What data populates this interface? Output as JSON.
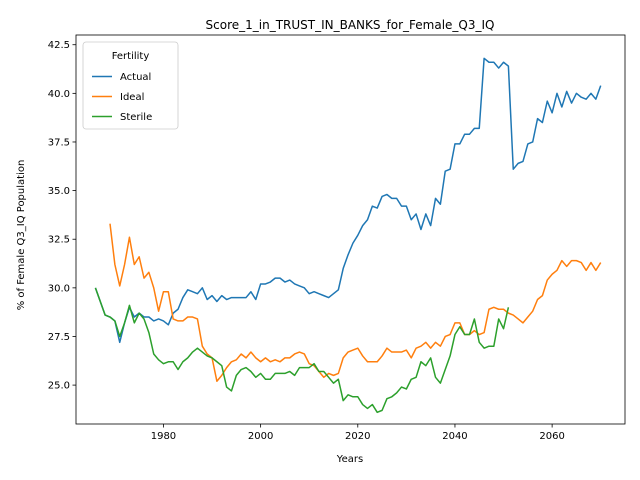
{
  "chart_data": {
    "type": "line",
    "title": "Score_1_in_TRUST_IN_BANKS_for_Female_Q3_IQ",
    "xlabel": "Years",
    "ylabel": "% of Female Q3_IQ Population",
    "xlim": [
      1962,
      2075
    ],
    "ylim": [
      23.0,
      43.0
    ],
    "xticks": [
      1980,
      2000,
      2020,
      2040,
      2060
    ],
    "yticks": [
      25.0,
      27.5,
      30.0,
      32.5,
      35.0,
      37.5,
      40.0,
      42.5
    ],
    "ytick_labels": [
      "25.0",
      "27.5",
      "30.0",
      "32.5",
      "35.0",
      "37.5",
      "40.0",
      "42.5"
    ],
    "grid": false,
    "legend": {
      "title": "Fertility",
      "placement": "top-left"
    },
    "series": [
      {
        "name": "Actual",
        "color": "#1f77b4",
        "x": [
          1966,
          1968,
          1969,
          1970,
          1971,
          1972,
          1973,
          1974,
          1975,
          1976,
          1977,
          1978,
          1979,
          1980,
          1981,
          1982,
          1983,
          1984,
          1985,
          1986,
          1987,
          1988,
          1989,
          1990,
          1991,
          1992,
          1993,
          1994,
          1995,
          1996,
          1997,
          1998,
          1999,
          2000,
          2001,
          2002,
          2003,
          2004,
          2005,
          2006,
          2007,
          2008,
          2009,
          2010,
          2011,
          2012,
          2013,
          2014,
          2015,
          2016,
          2017,
          2018,
          2019,
          2020,
          2021,
          2022,
          2023,
          2024,
          2025,
          2026,
          2027,
          2028,
          2029,
          2030,
          2031,
          2032,
          2033,
          2034,
          2035,
          2036,
          2037,
          2038,
          2039,
          2040,
          2041,
          2042,
          2043,
          2044,
          2045,
          2046,
          2047,
          2048,
          2049,
          2050,
          2051,
          2052,
          2053,
          2054,
          2055,
          2056,
          2057,
          2058,
          2059,
          2060,
          2061,
          2062,
          2063,
          2064,
          2065,
          2066,
          2067,
          2068,
          2069,
          2070
        ],
        "y": [
          30.0,
          28.6,
          28.5,
          28.3,
          27.2,
          28.2,
          29.0,
          28.5,
          28.7,
          28.5,
          28.5,
          28.3,
          28.4,
          28.3,
          28.1,
          28.7,
          28.9,
          29.5,
          29.9,
          29.8,
          29.7,
          30.0,
          29.4,
          29.6,
          29.3,
          29.6,
          29.4,
          29.5,
          29.5,
          29.5,
          29.5,
          29.8,
          29.4,
          30.2,
          30.2,
          30.3,
          30.5,
          30.5,
          30.3,
          30.4,
          30.2,
          30.1,
          30.0,
          29.7,
          29.8,
          29.7,
          29.6,
          29.5,
          29.7,
          29.9,
          31.0,
          31.7,
          32.3,
          32.7,
          33.2,
          33.5,
          34.2,
          34.1,
          34.7,
          34.8,
          34.6,
          34.6,
          34.2,
          34.2,
          33.5,
          33.8,
          33.0,
          33.8,
          33.2,
          34.6,
          34.3,
          36.0,
          36.1,
          37.4,
          37.4,
          37.9,
          37.9,
          38.2,
          38.2,
          41.8,
          41.6,
          41.6,
          41.3,
          41.6,
          41.4,
          36.1,
          36.4,
          36.5,
          37.4,
          37.5,
          38.7,
          38.5,
          39.6,
          39.0,
          40.0,
          39.3,
          40.1,
          39.5,
          40.0,
          39.8,
          39.7,
          40.0,
          39.7,
          40.4
        ]
      },
      {
        "name": "Ideal",
        "color": "#ff7f0e",
        "x": [
          1969,
          1970,
          1971,
          1972,
          1973,
          1974,
          1975,
          1976,
          1977,
          1978,
          1979,
          1980,
          1981,
          1982,
          1983,
          1984,
          1985,
          1986,
          1987,
          1988,
          1989,
          1990,
          1991,
          1992,
          1993,
          1994,
          1995,
          1996,
          1997,
          1998,
          1999,
          2000,
          2001,
          2002,
          2003,
          2004,
          2005,
          2006,
          2007,
          2008,
          2009,
          2010,
          2011,
          2012,
          2013,
          2014,
          2015,
          2016,
          2017,
          2018,
          2019,
          2020,
          2021,
          2022,
          2023,
          2024,
          2025,
          2026,
          2027,
          2028,
          2029,
          2030,
          2031,
          2032,
          2033,
          2034,
          2035,
          2036,
          2037,
          2038,
          2039,
          2040,
          2041,
          2042,
          2043,
          2044,
          2045,
          2046,
          2047,
          2048,
          2049,
          2050,
          2051,
          2052,
          2053,
          2054,
          2055,
          2056,
          2057,
          2058,
          2059,
          2060,
          2061,
          2062,
          2063,
          2064,
          2065,
          2066,
          2067,
          2068,
          2069,
          2070
        ],
        "y": [
          33.3,
          31.2,
          30.1,
          31.2,
          32.6,
          31.2,
          31.6,
          30.5,
          30.8,
          30.0,
          28.8,
          29.8,
          29.8,
          28.4,
          28.3,
          28.3,
          28.5,
          28.5,
          28.4,
          27.0,
          26.6,
          26.4,
          25.2,
          25.5,
          25.9,
          26.2,
          26.3,
          26.6,
          26.4,
          26.7,
          26.4,
          26.2,
          26.4,
          26.2,
          26.3,
          26.2,
          26.4,
          26.4,
          26.6,
          26.7,
          26.6,
          26.1,
          26.0,
          25.7,
          25.4,
          25.6,
          25.5,
          25.6,
          26.4,
          26.7,
          26.8,
          26.9,
          26.5,
          26.2,
          26.2,
          26.2,
          26.5,
          26.9,
          26.7,
          26.7,
          26.7,
          26.8,
          26.4,
          26.9,
          27.0,
          27.2,
          26.9,
          27.2,
          27.0,
          27.5,
          27.6,
          28.2,
          28.2,
          27.6,
          27.6,
          27.8,
          27.6,
          27.7,
          28.9,
          29.0,
          28.9,
          28.9,
          28.7,
          28.6,
          28.4,
          28.2,
          28.5,
          28.8,
          29.4,
          29.6,
          30.4,
          30.7,
          30.9,
          31.4,
          31.1,
          31.4,
          31.4,
          31.3,
          30.9,
          31.3,
          30.9,
          31.3
        ]
      },
      {
        "name": "Sterile",
        "color": "#2ca02c",
        "x": [
          1966,
          1968,
          1969,
          1970,
          1971,
          1972,
          1973,
          1974,
          1975,
          1976,
          1977,
          1978,
          1979,
          1980,
          1981,
          1982,
          1983,
          1984,
          1985,
          1986,
          1987,
          1988,
          1989,
          1990,
          1991,
          1992,
          1993,
          1994,
          1995,
          1996,
          1997,
          1998,
          1999,
          2000,
          2001,
          2002,
          2003,
          2004,
          2005,
          2006,
          2007,
          2008,
          2009,
          2010,
          2011,
          2012,
          2013,
          2014,
          2015,
          2016,
          2017,
          2018,
          2019,
          2020,
          2021,
          2022,
          2023,
          2024,
          2025,
          2026,
          2027,
          2028,
          2029,
          2030,
          2031,
          2032,
          2033,
          2034,
          2035,
          2036,
          2037,
          2038,
          2039,
          2040,
          2041,
          2042,
          2043,
          2044,
          2045,
          2046,
          2047,
          2048,
          2049,
          2050,
          2051
        ],
        "y": [
          30.0,
          28.6,
          28.5,
          28.3,
          27.5,
          28.2,
          29.1,
          28.2,
          28.7,
          28.4,
          27.7,
          26.6,
          26.3,
          26.1,
          26.2,
          26.2,
          25.8,
          26.2,
          26.4,
          26.7,
          26.9,
          26.7,
          26.5,
          26.4,
          26.2,
          26.0,
          24.9,
          24.7,
          25.5,
          25.8,
          25.9,
          25.7,
          25.4,
          25.6,
          25.3,
          25.3,
          25.6,
          25.6,
          25.6,
          25.7,
          25.5,
          25.9,
          25.9,
          25.9,
          26.1,
          25.7,
          25.7,
          25.4,
          25.1,
          25.3,
          24.2,
          24.5,
          24.4,
          24.4,
          24.0,
          23.8,
          24.0,
          23.6,
          23.7,
          24.3,
          24.4,
          24.6,
          24.9,
          24.8,
          25.3,
          25.4,
          26.2,
          26.0,
          26.4,
          25.4,
          25.1,
          25.8,
          26.5,
          27.6,
          28.0,
          27.6,
          27.6,
          28.4,
          27.2,
          26.9,
          27.0,
          27.0,
          28.4,
          27.9,
          29.0
        ]
      }
    ]
  }
}
